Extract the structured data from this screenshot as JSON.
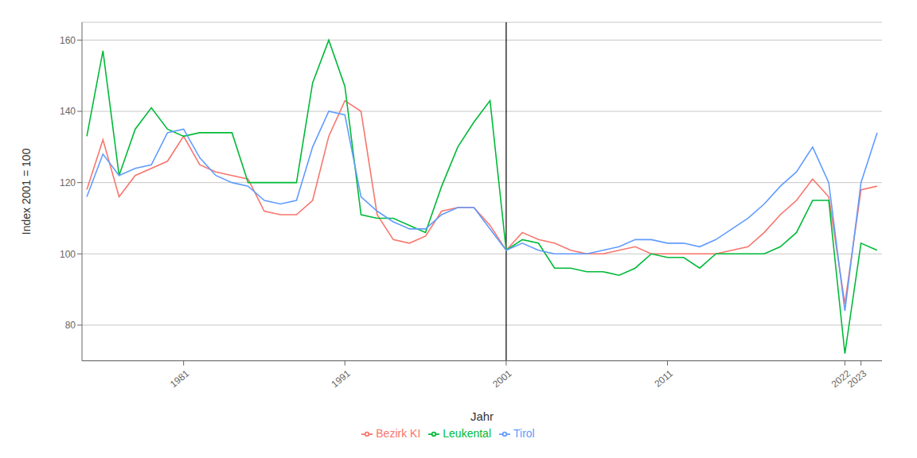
{
  "chart_data": {
    "type": "line",
    "xlabel": "Jahr",
    "ylabel": "Index 2001 = 100",
    "x": [
      1975,
      1976,
      1977,
      1978,
      1979,
      1980,
      1981,
      1982,
      1983,
      1984,
      1985,
      1986,
      1987,
      1988,
      1989,
      1990,
      1991,
      1992,
      1993,
      1994,
      1995,
      1996,
      1997,
      1998,
      1999,
      2000,
      2001,
      2002,
      2003,
      2004,
      2005,
      2006,
      2007,
      2008,
      2009,
      2010,
      2011,
      2012,
      2013,
      2014,
      2015,
      2016,
      2017,
      2018,
      2019,
      2020,
      2021,
      2022,
      2023,
      2024
    ],
    "series": [
      {
        "name": "Bezirk KI",
        "color": "#F8766D",
        "values": [
          118,
          132,
          116,
          122,
          124,
          126,
          133,
          125,
          123,
          122,
          121,
          112,
          111,
          111,
          115,
          133,
          143,
          140,
          111,
          104,
          103,
          105,
          112,
          113,
          113,
          108,
          101,
          106,
          104,
          103,
          101,
          100,
          100,
          101,
          102,
          100,
          100,
          100,
          100,
          100,
          101,
          102,
          106,
          111,
          115,
          121,
          116,
          86,
          118,
          119
        ]
      },
      {
        "name": "Leukental",
        "color": "#00BA38",
        "values": [
          133,
          157,
          122,
          135,
          141,
          135,
          133,
          134,
          134,
          134,
          120,
          120,
          120,
          120,
          148,
          160,
          147,
          111,
          110,
          110,
          108,
          106,
          119,
          130,
          137,
          143,
          101,
          104,
          103,
          96,
          96,
          95,
          95,
          94,
          96,
          100,
          99,
          99,
          96,
          100,
          100,
          100,
          100,
          102,
          106,
          115,
          115,
          72,
          103,
          101
        ]
      },
      {
        "name": "Tirol",
        "color": "#619CFF",
        "values": [
          116,
          128,
          122,
          124,
          125,
          134,
          135,
          127,
          122,
          120,
          119,
          115,
          114,
          115,
          130,
          140,
          139,
          116,
          112,
          109,
          107,
          107,
          111,
          113,
          113,
          107,
          101,
          103,
          101,
          100,
          100,
          100,
          101,
          102,
          104,
          104,
          103,
          103,
          102,
          104,
          107,
          110,
          114,
          119,
          123,
          130,
          120,
          84,
          120,
          134
        ]
      }
    ],
    "xlim": [
      1974.7,
      2024.3
    ],
    "xticks": [
      1981,
      1991,
      2001,
      2011,
      2022,
      2023
    ],
    "ylim": [
      70,
      165
    ],
    "yticks": [
      80,
      100,
      120,
      140,
      160
    ],
    "vline_x": 2001,
    "grid": true,
    "legend": "bottom"
  }
}
